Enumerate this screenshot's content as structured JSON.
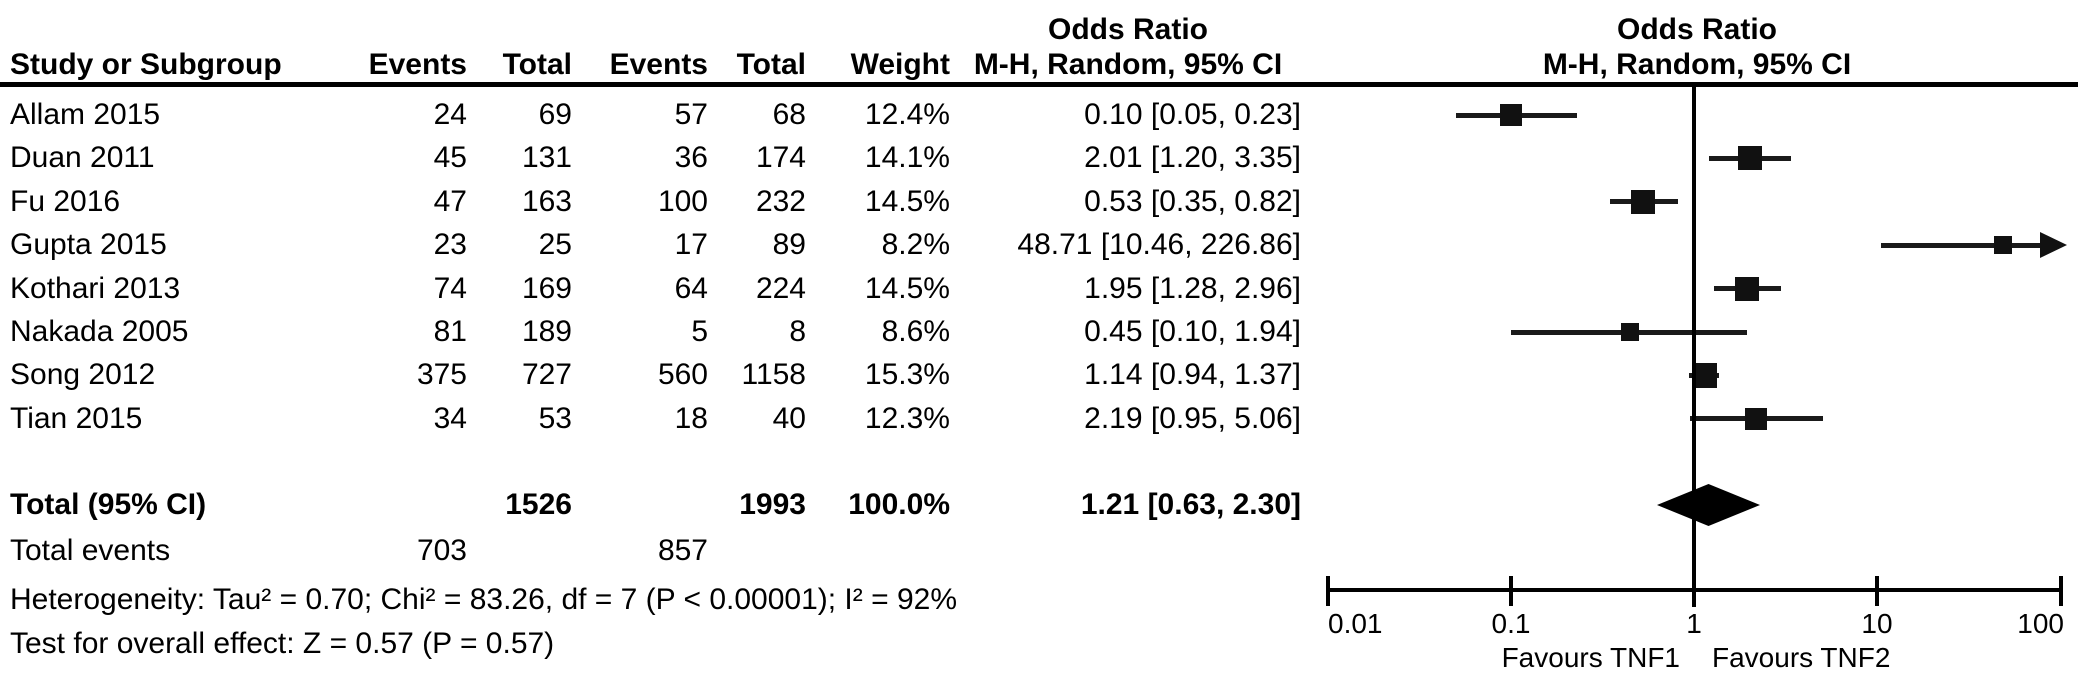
{
  "chart_data": {
    "type": "forest_plot",
    "effect_measure": "Odds Ratio",
    "model": "M-H, Random, 95% CI",
    "header": {
      "study": "Study or Subgroup",
      "events1": "Events",
      "total1": "Total",
      "events2": "Events",
      "total2": "Total",
      "weight": "Weight",
      "odds_ratio_left": "Odds Ratio",
      "method_left": "M-H, Random, 95% CI",
      "odds_ratio_right": "Odds Ratio",
      "method_right": "M-H, Random, 95% CI"
    },
    "studies": [
      {
        "study": "Allam 2015",
        "events1": "24",
        "total1": "69",
        "events2": "57",
        "total2": "68",
        "weight": "12.4%",
        "weight_pct": 12.4,
        "ci_text": "0.10 [0.05, 0.23]",
        "or": 0.1,
        "low": 0.05,
        "high": 0.23
      },
      {
        "study": "Duan 2011",
        "events1": "45",
        "total1": "131",
        "events2": "36",
        "total2": "174",
        "weight": "14.1%",
        "weight_pct": 14.1,
        "ci_text": "2.01 [1.20, 3.35]",
        "or": 2.01,
        "low": 1.2,
        "high": 3.35
      },
      {
        "study": "Fu 2016",
        "events1": "47",
        "total1": "163",
        "events2": "100",
        "total2": "232",
        "weight": "14.5%",
        "weight_pct": 14.5,
        "ci_text": "0.53 [0.35, 0.82]",
        "or": 0.53,
        "low": 0.35,
        "high": 0.82
      },
      {
        "study": "Gupta 2015",
        "events1": "23",
        "total1": "25",
        "events2": "17",
        "total2": "89",
        "weight": "8.2%",
        "weight_pct": 8.2,
        "ci_text": "48.71 [10.46, 226.86]",
        "or": 48.71,
        "low": 10.46,
        "high": 226.86
      },
      {
        "study": "Kothari 2013",
        "events1": "74",
        "total1": "169",
        "events2": "64",
        "total2": "224",
        "weight": "14.5%",
        "weight_pct": 14.5,
        "ci_text": "1.95 [1.28, 2.96]",
        "or": 1.95,
        "low": 1.28,
        "high": 2.96
      },
      {
        "study": "Nakada 2005",
        "events1": "81",
        "total1": "189",
        "events2": "5",
        "total2": "8",
        "weight": "8.6%",
        "weight_pct": 8.6,
        "ci_text": "0.45 [0.10, 1.94]",
        "or": 0.45,
        "low": 0.1,
        "high": 1.94
      },
      {
        "study": "Song 2012",
        "events1": "375",
        "total1": "727",
        "events2": "560",
        "total2": "1158",
        "weight": "15.3%",
        "weight_pct": 15.3,
        "ci_text": "1.14 [0.94, 1.37]",
        "or": 1.14,
        "low": 0.94,
        "high": 1.37
      },
      {
        "study": "Tian 2015",
        "events1": "34",
        "total1": "53",
        "events2": "18",
        "total2": "40",
        "weight": "12.3%",
        "weight_pct": 12.3,
        "ci_text": "2.19 [0.95, 5.06]",
        "or": 2.19,
        "low": 0.95,
        "high": 5.06
      }
    ],
    "total": {
      "label": "Total (95% CI)",
      "total1": "1526",
      "total2": "1993",
      "weight": "100.0%",
      "ci_text": "1.21 [0.63, 2.30]",
      "or": 1.21,
      "low": 0.63,
      "high": 2.3
    },
    "total_events": {
      "label": "Total events",
      "events1": "703",
      "events2": "857"
    },
    "heterogeneity": "Heterogeneity: Tau² = 0.70; Chi² = 83.26, df = 7 (P < 0.00001); I² = 92%",
    "overall_effect": "Test for overall effect: Z = 0.57 (P = 0.57)",
    "axis": {
      "scale": "log",
      "min": 0.01,
      "max": 100,
      "ticks": [
        0.01,
        0.1,
        1,
        10,
        100
      ],
      "tick_labels": [
        "0.01",
        "0.1",
        "1",
        "10",
        "100"
      ],
      "favours_left": "Favours TNF1",
      "favours_right": "Favours TNF2"
    }
  }
}
